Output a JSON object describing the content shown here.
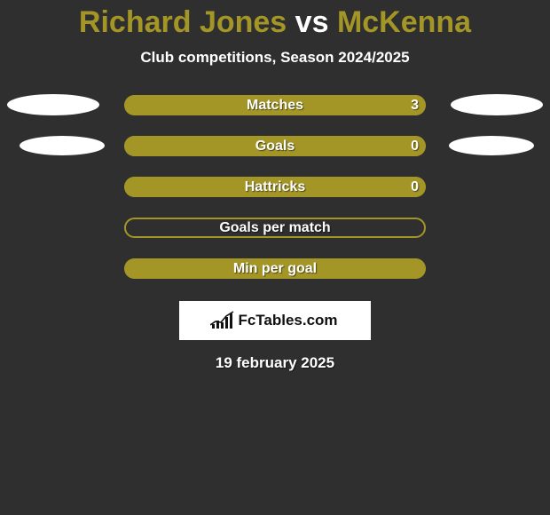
{
  "header": {
    "player1": "Richard Jones",
    "vs": "vs",
    "player2": "McKenna",
    "title_color_p1": "#a39626",
    "title_color_vs": "#ffffff",
    "title_color_p2": "#a39626",
    "subtitle": "Club competitions, Season 2024/2025"
  },
  "chart": {
    "bar_track_color": "#a39626",
    "bar_border_color": "#a39626",
    "bar_fill_color": "#a39626",
    "rows": [
      {
        "label": "Matches",
        "left_val": "",
        "right_val": "3",
        "fill_pct": 100,
        "border": false,
        "show_ellipses": "both"
      },
      {
        "label": "Goals",
        "left_val": "",
        "right_val": "0",
        "fill_pct": 100,
        "border": false,
        "show_ellipses": "small"
      },
      {
        "label": "Hattricks",
        "left_val": "",
        "right_val": "0",
        "fill_pct": 100,
        "border": false,
        "show_ellipses": "none"
      },
      {
        "label": "Goals per match",
        "left_val": "",
        "right_val": "",
        "fill_pct": 0,
        "border": true,
        "show_ellipses": "none"
      },
      {
        "label": "Min per goal",
        "left_val": "",
        "right_val": "",
        "fill_pct": 100,
        "border": false,
        "show_ellipses": "none"
      }
    ]
  },
  "brand": {
    "name": "FcTables.com"
  },
  "footer": {
    "date": "19 february 2025"
  },
  "colors": {
    "background": "#2f2f2f",
    "text": "#ffffff"
  }
}
